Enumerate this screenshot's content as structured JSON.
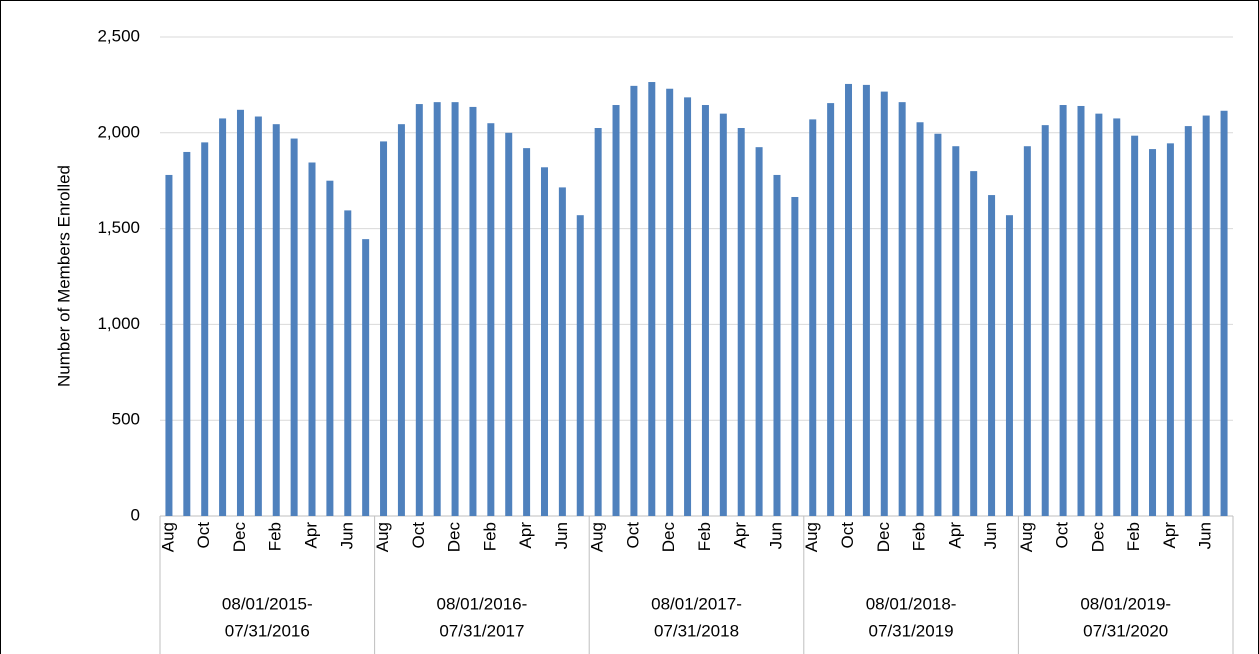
{
  "chart_data": {
    "type": "bar",
    "y_axis_label": "Number of Members Enrolled",
    "color": "#4f81bd",
    "grid": true,
    "ylim": [
      0,
      2500
    ],
    "yticks": [
      0,
      500,
      {
        "value": 1000,
        "label": "1,000"
      },
      {
        "value": 1500,
        "label": "1,500"
      },
      {
        "value": 2000,
        "label": "2,000"
      },
      {
        "value": 2500,
        "label": "2,500"
      }
    ],
    "categories": [
      "Aug",
      null,
      "Oct",
      null,
      "Dec",
      null,
      "Feb",
      null,
      "Apr",
      null,
      "Jun",
      null,
      "Aug",
      null,
      "Oct",
      null,
      "Dec",
      null,
      "Feb",
      null,
      "Apr",
      null,
      "Jun",
      null,
      "Aug",
      null,
      "Oct",
      null,
      "Dec",
      null,
      "Feb",
      null,
      "Apr",
      null,
      "Jun",
      null,
      "Aug",
      null,
      "Oct",
      null,
      "Dec",
      null,
      "Feb",
      null,
      "Apr",
      null,
      "Jun",
      null,
      "Aug",
      null,
      "Oct",
      null,
      "Dec",
      null,
      "Feb",
      null,
      "Apr",
      null,
      "Jun",
      null
    ],
    "values": [
      1780,
      1900,
      1950,
      2075,
      2120,
      2085,
      2045,
      1970,
      1845,
      1750,
      1595,
      1445,
      1955,
      2045,
      2150,
      2160,
      2160,
      2135,
      2050,
      2000,
      1920,
      1820,
      1715,
      1570,
      2025,
      2145,
      2245,
      2265,
      2230,
      2185,
      2145,
      2100,
      2025,
      1925,
      1780,
      1665,
      2070,
      2155,
      2255,
      2250,
      2215,
      2160,
      2055,
      1995,
      1930,
      1800,
      1675,
      1570,
      1930,
      2040,
      2145,
      2140,
      2100,
      2075,
      1985,
      1915,
      1945,
      2035,
      2090,
      2115
    ],
    "groups": [
      [
        "08/01/2015-",
        "07/31/2016"
      ],
      [
        "08/01/2016-",
        "07/31/2017"
      ],
      [
        "08/01/2017-",
        "07/31/2018"
      ],
      [
        "08/01/2018-",
        "07/31/2019"
      ],
      [
        "08/01/2019-",
        "07/31/2020"
      ]
    ]
  }
}
